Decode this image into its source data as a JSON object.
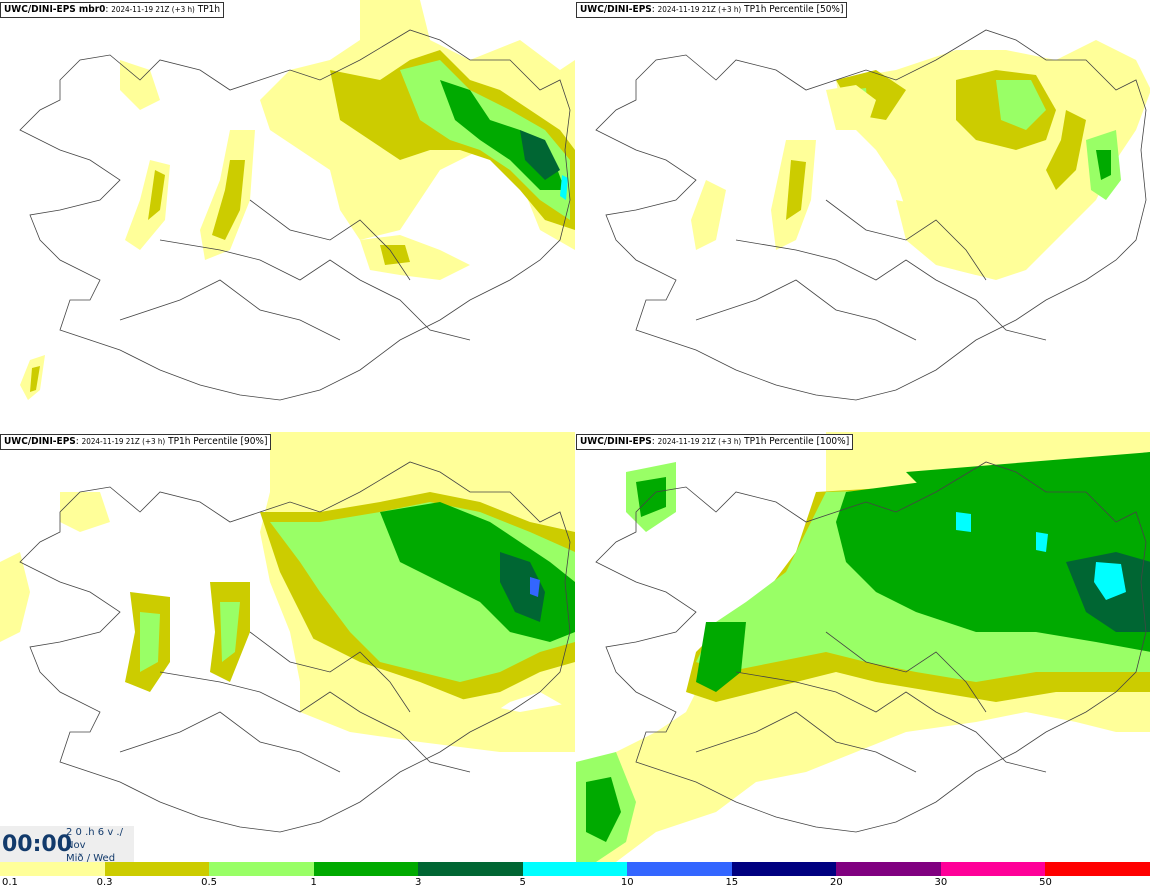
{
  "panels": [
    {
      "model": "UWC/DINI-EPS mbr0",
      "run": "2024-11-19 21Z (+3 h)",
      "field": "TP1h"
    },
    {
      "model": "UWC/DINI-EPS",
      "run": "2024-11-19 21Z (+3 h)",
      "field": "TP1h Percentile [50%]"
    },
    {
      "model": "UWC/DINI-EPS",
      "run": "2024-11-19 21Z (+3 h)",
      "field": "TP1h Percentile [90%]"
    },
    {
      "model": "UWC/DINI-EPS",
      "run": "2024-11-19 21Z (+3 h)",
      "field": "TP1h Percentile [100%]"
    }
  ],
  "time": {
    "clock": "00:00",
    "date_line1": "2 0 .h 6 v ./",
    "date_line2": "Nov",
    "date_line3": "Mið / Wed"
  },
  "legend": {
    "colors": [
      "#ffff99",
      "#cccc00",
      "#99ff66",
      "#00aa00",
      "#006633",
      "#00ffff",
      "#3366ff",
      "#000080",
      "#800080",
      "#ff0099",
      "#ff0000"
    ],
    "ticks": [
      "0.1",
      "0.3",
      "0.5",
      "1",
      "3",
      "5",
      "10",
      "15",
      "20",
      "30",
      "50"
    ]
  }
}
